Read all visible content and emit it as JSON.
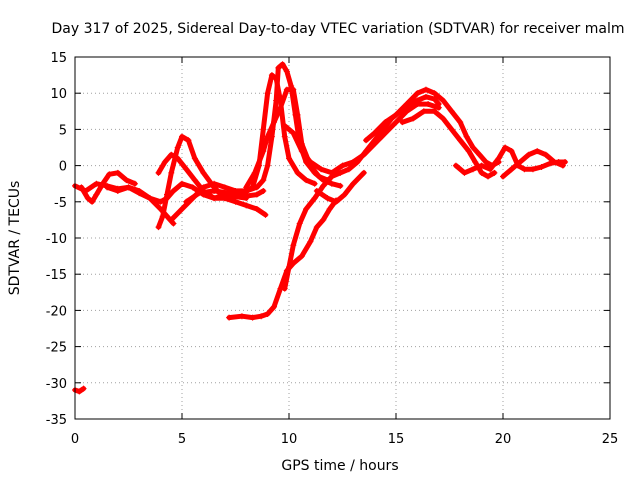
{
  "chart_data": {
    "type": "scatter",
    "title": "Day 317 of 2025, Sidereal Day-to-day VTEC variation (SDTVAR) for receiver malm",
    "xlabel": "GPS time / hours",
    "ylabel": "SDTVAR / TECUs",
    "xlim": [
      0,
      25
    ],
    "ylim": [
      -35,
      15
    ],
    "xticks": [
      "0",
      "5",
      "10",
      "15",
      "20",
      "25"
    ],
    "yticks": [
      "15",
      "10",
      "5",
      "0",
      "-5",
      "-10",
      "-15",
      "-20",
      "-25",
      "-30",
      "-35"
    ],
    "grid": true,
    "color": "#ff0000",
    "marker": "plus",
    "series": [
      {
        "name": "track-1",
        "points": [
          [
            0,
            -2.8
          ],
          [
            0.5,
            -3.5
          ],
          [
            1,
            -2.5
          ],
          [
            1.5,
            -2.8
          ],
          [
            2,
            -3.2
          ],
          [
            2.5,
            -3.0
          ],
          [
            3,
            -3.5
          ],
          [
            3.5,
            -4.5
          ],
          [
            4,
            -5.0
          ],
          [
            4.3,
            -4.5
          ],
          [
            4.6,
            -3.5
          ],
          [
            5,
            -2.5
          ],
          [
            5.5,
            -3.0
          ],
          [
            6,
            -4.0
          ],
          [
            6.5,
            -4.5
          ],
          [
            7,
            -4.0
          ],
          [
            7.5,
            -4.0
          ],
          [
            8,
            -4.2
          ],
          [
            8.5,
            -4.0
          ],
          [
            8.8,
            -3.5
          ]
        ]
      },
      {
        "name": "track-2",
        "points": [
          [
            0.3,
            -3.0
          ],
          [
            0.6,
            -4.5
          ],
          [
            0.8,
            -5.0
          ],
          [
            1.0,
            -4.0
          ],
          [
            1.3,
            -2.5
          ],
          [
            1.6,
            -1.2
          ],
          [
            2.0,
            -1.0
          ],
          [
            2.4,
            -2.0
          ],
          [
            2.8,
            -2.5
          ]
        ]
      },
      {
        "name": "track-3",
        "points": [
          [
            1.5,
            -3.0
          ],
          [
            2.0,
            -3.5
          ],
          [
            2.5,
            -3.0
          ],
          [
            3.0,
            -3.8
          ],
          [
            3.5,
            -4.5
          ],
          [
            4.0,
            -6.0
          ],
          [
            4.3,
            -7.0
          ],
          [
            4.6,
            -8.0
          ]
        ]
      },
      {
        "name": "track-4",
        "points": [
          [
            3.9,
            -8.5
          ],
          [
            4.1,
            -7.0
          ],
          [
            4.3,
            -4.0
          ],
          [
            4.5,
            -1.0
          ],
          [
            4.8,
            2.5
          ],
          [
            5.0,
            4.0
          ],
          [
            5.3,
            3.5
          ],
          [
            5.6,
            1.0
          ],
          [
            6.0,
            -1.0
          ],
          [
            6.5,
            -3.0
          ],
          [
            7.0,
            -4.5
          ],
          [
            7.5,
            -5.0
          ],
          [
            8.0,
            -5.5
          ],
          [
            8.5,
            -6.0
          ],
          [
            8.9,
            -6.8
          ]
        ]
      },
      {
        "name": "track-5",
        "points": [
          [
            3.9,
            -1.0
          ],
          [
            4.2,
            0.5
          ],
          [
            4.5,
            1.5
          ],
          [
            4.8,
            1.0
          ],
          [
            5.2,
            -0.5
          ],
          [
            5.6,
            -2.0
          ],
          [
            6.0,
            -3.5
          ],
          [
            6.5,
            -4.5
          ],
          [
            7.0,
            -4.5
          ],
          [
            7.5,
            -4.3
          ],
          [
            8.0,
            -4.5
          ]
        ]
      },
      {
        "name": "track-6",
        "points": [
          [
            4.5,
            -7.5
          ],
          [
            5.0,
            -6.0
          ],
          [
            5.5,
            -4.5
          ],
          [
            6.0,
            -3.0
          ],
          [
            6.5,
            -2.5
          ],
          [
            7.0,
            -3.0
          ],
          [
            7.5,
            -3.5
          ],
          [
            8.0,
            -3.5
          ],
          [
            8.5,
            -3.0
          ],
          [
            8.8,
            -2.0
          ],
          [
            9.0,
            0.0
          ],
          [
            9.2,
            4.0
          ],
          [
            9.4,
            9.0
          ],
          [
            9.5,
            13.5
          ],
          [
            9.7,
            14.0
          ],
          [
            9.9,
            13.0
          ],
          [
            10.1,
            11.0
          ],
          [
            10.3,
            7.0
          ],
          [
            10.5,
            3.0
          ],
          [
            10.8,
            0.5
          ],
          [
            11.2,
            -1.0
          ],
          [
            11.6,
            -2.0
          ],
          [
            12.0,
            -2.5
          ],
          [
            12.4,
            -2.8
          ]
        ]
      },
      {
        "name": "track-7",
        "points": [
          [
            5.2,
            -5.0
          ],
          [
            5.8,
            -3.8
          ],
          [
            6.5,
            -3.5
          ],
          [
            7.2,
            -3.8
          ],
          [
            7.8,
            -4.0
          ],
          [
            8.3,
            -3.0
          ],
          [
            8.6,
            0.0
          ],
          [
            8.8,
            5.0
          ],
          [
            9.0,
            10.0
          ],
          [
            9.2,
            12.5
          ],
          [
            9.4,
            12.0
          ],
          [
            9.6,
            9.0
          ],
          [
            9.8,
            4.0
          ],
          [
            10.0,
            1.0
          ],
          [
            10.4,
            -1.0
          ],
          [
            10.8,
            -2.0
          ],
          [
            11.2,
            -2.5
          ]
        ]
      },
      {
        "name": "track-8",
        "points": [
          [
            8.0,
            -3.0
          ],
          [
            8.4,
            -1.0
          ],
          [
            8.8,
            2.0
          ],
          [
            9.0,
            4.0
          ],
          [
            9.3,
            6.0
          ],
          [
            9.6,
            8.0
          ],
          [
            9.9,
            10.5
          ],
          [
            10.2,
            10.5
          ],
          [
            10.4,
            7.0
          ],
          [
            10.6,
            3.0
          ],
          [
            11.0,
            0.0
          ],
          [
            11.4,
            -1.5
          ],
          [
            11.8,
            -2.0
          ]
        ]
      },
      {
        "name": "track-9",
        "points": [
          [
            7.2,
            -21.0
          ],
          [
            7.8,
            -20.8
          ],
          [
            8.3,
            -21.0
          ],
          [
            8.7,
            -20.8
          ],
          [
            9.0,
            -20.5
          ],
          [
            9.3,
            -19.5
          ],
          [
            9.6,
            -17.0
          ],
          [
            9.9,
            -14.5
          ],
          [
            10.2,
            -13.5
          ],
          [
            10.6,
            -12.5
          ],
          [
            11.0,
            -10.5
          ],
          [
            11.3,
            -8.5
          ],
          [
            11.6,
            -7.5
          ],
          [
            11.9,
            -6.0
          ],
          [
            12.2,
            -4.8
          ]
        ]
      },
      {
        "name": "track-10",
        "points": [
          [
            9.8,
            -17.0
          ],
          [
            10.0,
            -14.0
          ],
          [
            10.2,
            -11.0
          ],
          [
            10.5,
            -8.0
          ],
          [
            10.8,
            -6.0
          ],
          [
            11.2,
            -4.5
          ],
          [
            11.6,
            -2.8
          ],
          [
            12.0,
            -1.5
          ],
          [
            12.4,
            -1.0
          ],
          [
            12.8,
            -0.5
          ],
          [
            13.2,
            0.5
          ],
          [
            13.6,
            2.0
          ],
          [
            14.0,
            3.5
          ],
          [
            14.4,
            5.0
          ],
          [
            14.8,
            6.5
          ],
          [
            15.2,
            7.5
          ],
          [
            15.6,
            8.5
          ],
          [
            16.0,
            9.0
          ],
          [
            16.4,
            9.5
          ],
          [
            16.8,
            9.2
          ],
          [
            17.0,
            8.5
          ]
        ]
      },
      {
        "name": "track-11",
        "points": [
          [
            9.8,
            5.5
          ],
          [
            10.2,
            4.5
          ],
          [
            10.6,
            2.0
          ],
          [
            11.0,
            0.5
          ],
          [
            11.5,
            -0.5
          ],
          [
            12.0,
            -1.0
          ],
          [
            12.5,
            0.0
          ],
          [
            13.0,
            0.5
          ],
          [
            13.5,
            1.5
          ],
          [
            14.0,
            3.0
          ],
          [
            14.5,
            4.5
          ],
          [
            15.0,
            6.0
          ],
          [
            15.5,
            7.5
          ],
          [
            16.0,
            8.5
          ],
          [
            16.5,
            8.5
          ],
          [
            17.0,
            8.0
          ]
        ]
      },
      {
        "name": "track-12",
        "points": [
          [
            11.3,
            -3.5
          ],
          [
            11.8,
            -4.5
          ],
          [
            12.2,
            -5.0
          ],
          [
            12.6,
            -4.0
          ],
          [
            13.0,
            -2.5
          ],
          [
            13.5,
            -1.0
          ]
        ]
      },
      {
        "name": "track-13",
        "points": [
          [
            13.6,
            3.5
          ],
          [
            14.0,
            4.5
          ],
          [
            14.5,
            6.0
          ],
          [
            15.0,
            7.0
          ],
          [
            15.5,
            8.5
          ],
          [
            16.0,
            10.0
          ],
          [
            16.4,
            10.5
          ],
          [
            16.8,
            10.0
          ],
          [
            17.2,
            9.0
          ],
          [
            17.6,
            7.5
          ],
          [
            18.0,
            6.0
          ],
          [
            18.3,
            4.0
          ],
          [
            18.6,
            2.5
          ],
          [
            18.9,
            1.5
          ],
          [
            19.2,
            0.5
          ],
          [
            19.5,
            0.0
          ],
          [
            19.8,
            0.5
          ]
        ]
      },
      {
        "name": "track-14",
        "points": [
          [
            15.3,
            6.0
          ],
          [
            15.8,
            6.5
          ],
          [
            16.3,
            7.5
          ],
          [
            16.8,
            7.5
          ],
          [
            17.2,
            6.5
          ],
          [
            17.6,
            5.0
          ],
          [
            18.0,
            3.5
          ],
          [
            18.4,
            2.0
          ],
          [
            18.7,
            0.5
          ],
          [
            19.0,
            -1.0
          ],
          [
            19.3,
            -1.5
          ],
          [
            19.6,
            -1.0
          ]
        ]
      },
      {
        "name": "track-15",
        "points": [
          [
            17.8,
            0.0
          ],
          [
            18.2,
            -1.0
          ],
          [
            18.6,
            -0.5
          ],
          [
            19.0,
            0.0
          ],
          [
            19.4,
            -0.5
          ],
          [
            19.8,
            1.0
          ],
          [
            20.1,
            2.5
          ],
          [
            20.4,
            2.0
          ],
          [
            20.7,
            0.0
          ],
          [
            21.0,
            -0.5
          ],
          [
            21.4,
            -0.5
          ],
          [
            21.8,
            -0.2
          ],
          [
            22.2,
            0.3
          ],
          [
            22.6,
            0.5
          ],
          [
            22.9,
            0.5
          ]
        ]
      },
      {
        "name": "track-16",
        "points": [
          [
            20.0,
            -1.5
          ],
          [
            20.4,
            -0.5
          ],
          [
            20.8,
            0.5
          ],
          [
            21.2,
            1.5
          ],
          [
            21.6,
            2.0
          ],
          [
            22.0,
            1.5
          ],
          [
            22.4,
            0.5
          ],
          [
            22.8,
            0.0
          ]
        ]
      },
      {
        "name": "track-17",
        "points": [
          [
            0.0,
            -31.0
          ],
          [
            0.2,
            -31.2
          ],
          [
            0.4,
            -30.8
          ]
        ]
      }
    ]
  }
}
